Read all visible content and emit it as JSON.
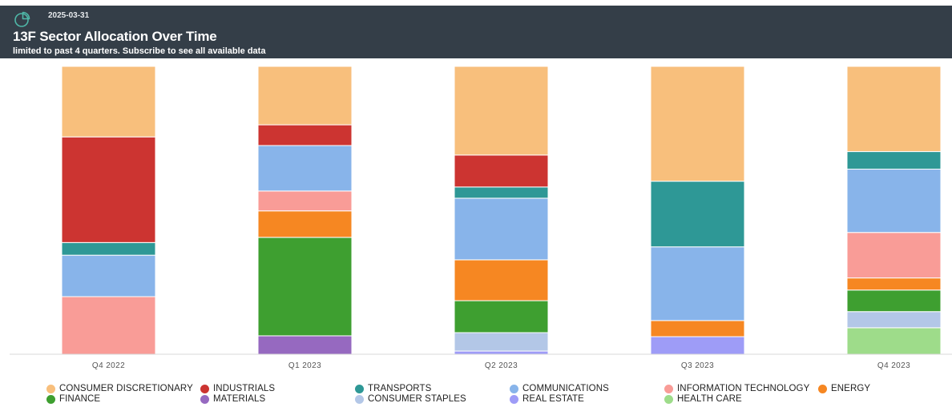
{
  "header": {
    "date": "2025-03-31",
    "title": "13F Sector Allocation Over Time",
    "subtitle": "limited to past 4 quarters. Subscribe to see all available data",
    "icon": "pie-chart-icon"
  },
  "chart_data": {
    "type": "bar",
    "stacked": true,
    "normalized_percent": true,
    "title": "",
    "xlabel": "",
    "ylabel": "",
    "ylim": [
      0,
      100
    ],
    "grid": false,
    "legend_position": "bottom",
    "categories": [
      "Q4 2022",
      "Q1 2023",
      "Q2 2023",
      "Q3 2023",
      "Q4 2023"
    ],
    "series": [
      {
        "name": "HEALTH CARE",
        "color": "#9edc8a",
        "values": [
          0,
          0,
          0,
          0,
          9.2
        ]
      },
      {
        "name": "REAL ESTATE",
        "color": "#9e9cf7",
        "values": [
          0,
          0,
          1.1,
          6.1,
          0
        ]
      },
      {
        "name": "MATERIALS",
        "color": "#9669c0",
        "values": [
          0,
          6.4,
          0,
          0,
          0
        ]
      },
      {
        "name": "CONSUMER STAPLES",
        "color": "#b3c7e7",
        "values": [
          0,
          0,
          6.4,
          0,
          5.6
        ]
      },
      {
        "name": "FINANCE",
        "color": "#3e9f30",
        "values": [
          0,
          34.2,
          11.1,
          0,
          7.5
        ]
      },
      {
        "name": "ENERGY",
        "color": "#f68722",
        "values": [
          0,
          9.2,
          14.2,
          5.6,
          4.2
        ]
      },
      {
        "name": "INFORMATION TECHNOLOGY",
        "color": "#f99c97",
        "values": [
          20.0,
          6.9,
          0,
          0,
          15.8
        ]
      },
      {
        "name": "COMMUNICATIONS",
        "color": "#88b4ea",
        "values": [
          14.4,
          15.8,
          21.4,
          25.6,
          22.0
        ]
      },
      {
        "name": "TRANSPORTS",
        "color": "#2e9896",
        "values": [
          4.4,
          0,
          3.9,
          22.8,
          6.1
        ]
      },
      {
        "name": "INDUSTRIALS",
        "color": "#cc3431",
        "values": [
          36.7,
          7.2,
          11.1,
          0,
          0
        ]
      },
      {
        "name": "CONSUMER DISCRETIONARY",
        "color": "#f8bf7c",
        "values": [
          24.5,
          20.3,
          30.8,
          39.9,
          29.6
        ]
      }
    ]
  },
  "legend": {
    "items": [
      {
        "label": "CONSUMER DISCRETIONARY",
        "color": "#f8bf7c"
      },
      {
        "label": "INDUSTRIALS",
        "color": "#cc3431"
      },
      {
        "label": "TRANSPORTS",
        "color": "#2e9896"
      },
      {
        "label": "COMMUNICATIONS",
        "color": "#88b4ea"
      },
      {
        "label": "INFORMATION TECHNOLOGY",
        "color": "#f99c97"
      },
      {
        "label": "ENERGY",
        "color": "#f68722"
      },
      {
        "label": "FINANCE",
        "color": "#3e9f30"
      },
      {
        "label": "MATERIALS",
        "color": "#9669c0"
      },
      {
        "label": "CONSUMER STAPLES",
        "color": "#b3c7e7"
      },
      {
        "label": "REAL ESTATE",
        "color": "#9e9cf7"
      },
      {
        "label": "HEALTH CARE",
        "color": "#9edc8a"
      }
    ]
  }
}
